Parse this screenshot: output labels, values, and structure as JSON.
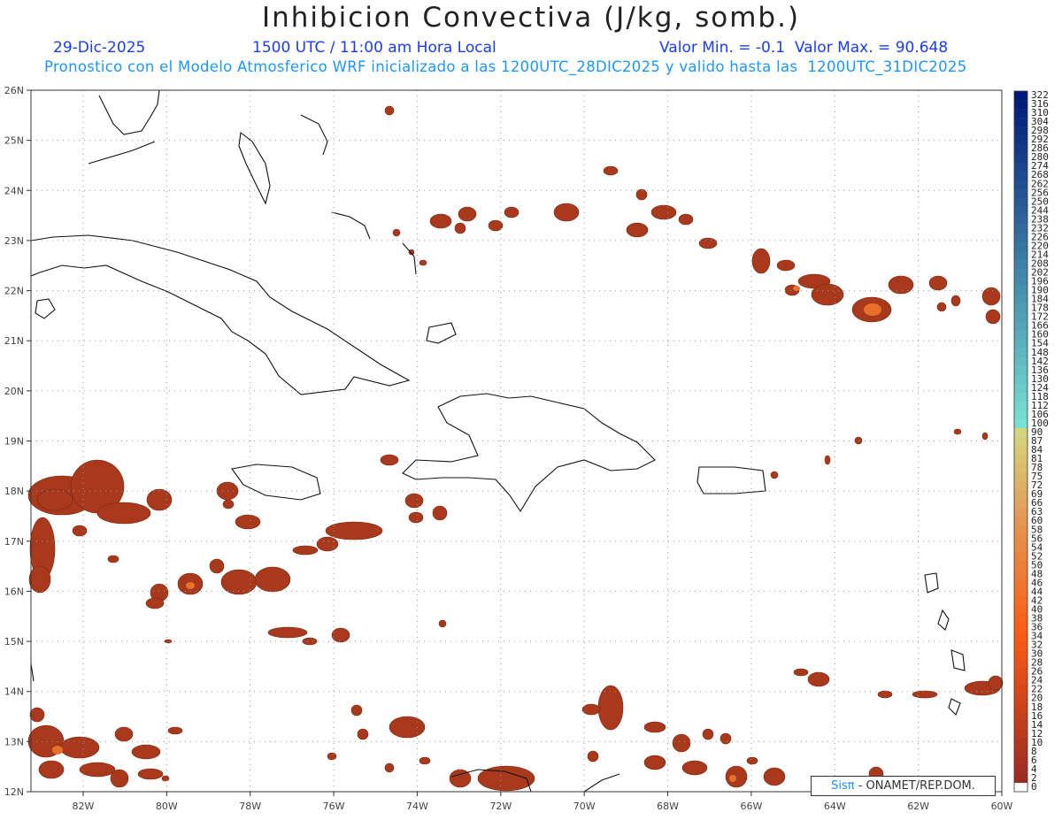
{
  "title": "Inhibicion Convectiva (J/kg, somb.)",
  "date": "29-Dic-2025",
  "time": "1500 UTC / 11:00 am Hora Local",
  "value_range": "Valor Min. = -0.1  Valor Max. = 90.648",
  "model_info": "Pronostico con el Modelo Atmosferico WRF inicializado a las 1200UTC_28DIC2025 y valido hasta las  1200UTC_31DIC2025",
  "logo": {
    "brand": "Sisπ",
    "credit": " - ONAMET/REP.DOM."
  },
  "map": {
    "lon_range": [
      -83.25,
      -60
    ],
    "lat_range": [
      12,
      26
    ],
    "lat_labels": [
      "26N",
      "25N",
      "24N",
      "23N",
      "22N",
      "21N",
      "20N",
      "19N",
      "18N",
      "17N",
      "16N",
      "15N",
      "14N",
      "13N",
      "12N"
    ],
    "lon_labels": [
      "82W",
      "80W",
      "78W",
      "76W",
      "74W",
      "72W",
      "70W",
      "68W",
      "66W",
      "64W",
      "62W",
      "60W"
    ],
    "shading_color": "#a8391d",
    "hot_color": "#e8702a"
  },
  "colorbar": {
    "labels": [
      "322",
      "316",
      "310",
      "304",
      "298",
      "292",
      "286",
      "280",
      "274",
      "268",
      "262",
      "256",
      "250",
      "244",
      "238",
      "232",
      "226",
      "220",
      "214",
      "208",
      "202",
      "196",
      "190",
      "184",
      "178",
      "172",
      "166",
      "160",
      "154",
      "148",
      "142",
      "136",
      "130",
      "124",
      "118",
      "112",
      "106",
      "100",
      "90",
      "87",
      "84",
      "81",
      "78",
      "75",
      "72",
      "69",
      "66",
      "63",
      "60",
      "58",
      "56",
      "54",
      "52",
      "50",
      "48",
      "46",
      "44",
      "42",
      "40",
      "38",
      "36",
      "34",
      "32",
      "30",
      "28",
      "26",
      "24",
      "22",
      "20",
      "18",
      "16",
      "14",
      "12",
      "10",
      "8",
      "6",
      "4",
      "2",
      "0"
    ]
  }
}
